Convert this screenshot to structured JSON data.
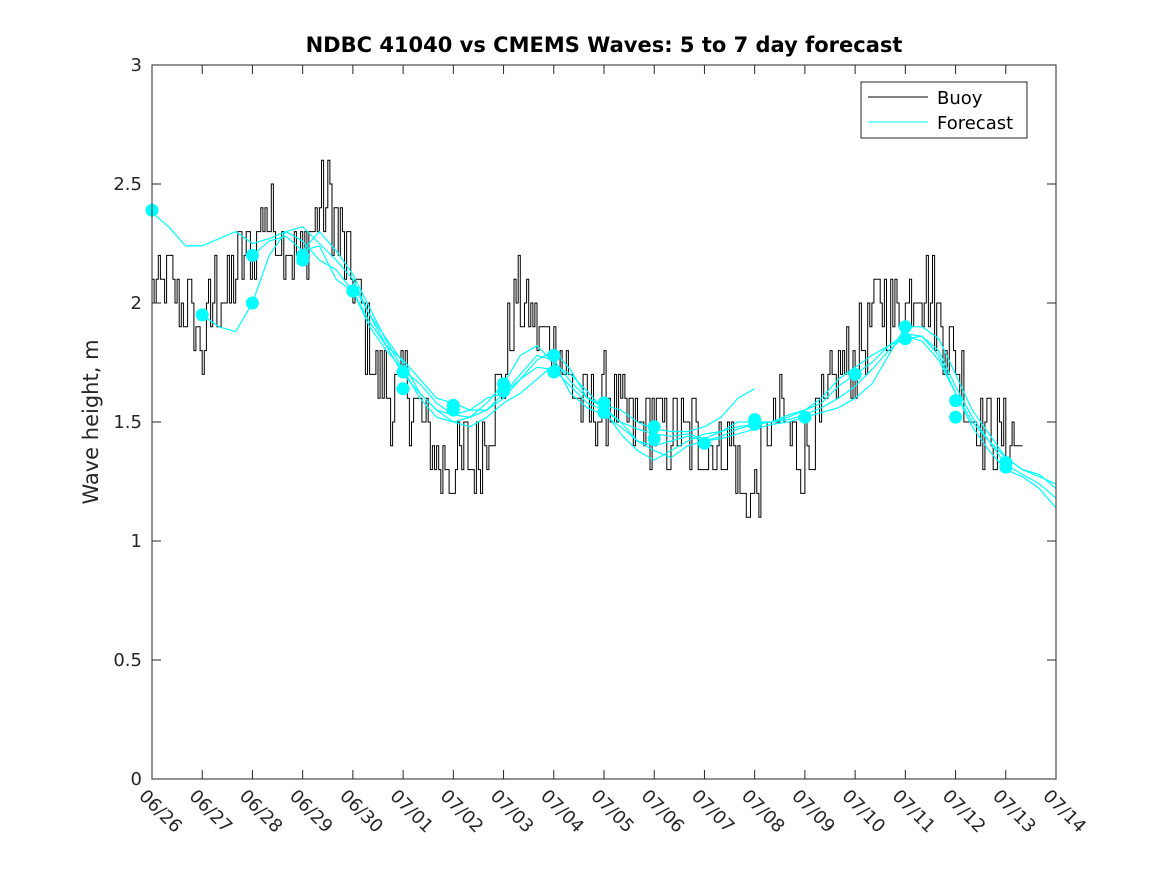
{
  "chart_data": {
    "type": "line",
    "title": "NDBC 41040 vs CMEMS Waves: 5 to 7 day forecast",
    "xlabel": "",
    "ylabel": "Wave height, m",
    "ylim": [
      0,
      3
    ],
    "xlim": [
      "2000-06-26",
      "2000-07-14"
    ],
    "yticks": [
      "0",
      "0.5",
      "1",
      "1.5",
      "2",
      "2.5",
      "3"
    ],
    "xticks": [
      "06/26",
      "06/27",
      "06/28",
      "06/29",
      "06/30",
      "07/01",
      "07/02",
      "07/03",
      "07/04",
      "07/05",
      "07/06",
      "07/07",
      "07/08",
      "07/09",
      "07/10",
      "07/11",
      "07/12",
      "07/13",
      "07/14"
    ],
    "grid": false,
    "legend_position": "top-right",
    "legend": [
      "Buoy",
      "Forecast"
    ],
    "colors": {
      "buoy": "#000000",
      "forecast": "#00ffff"
    },
    "buoy": {
      "name": "Buoy",
      "x": [
        "2000-06-26 00:00",
        "2000-06-26 06:00",
        "2000-06-26 12:00",
        "2000-06-26 18:00",
        "2000-06-27 00:00",
        "2000-06-27 06:00",
        "2000-06-27 12:00",
        "2000-06-27 18:00",
        "2000-06-28 00:00",
        "2000-06-28 06:00",
        "2000-06-28 12:00",
        "2000-06-28 18:00",
        "2000-06-29 00:00",
        "2000-06-29 06:00",
        "2000-06-29 12:00",
        "2000-06-29 18:00",
        "2000-06-30 00:00",
        "2000-06-30 06:00",
        "2000-06-30 12:00",
        "2000-06-30 18:00",
        "2000-07-01 00:00",
        "2000-07-01 06:00",
        "2000-07-01 12:00",
        "2000-07-01 18:00",
        "2000-07-02 00:00",
        "2000-07-02 06:00",
        "2000-07-02 12:00",
        "2000-07-02 18:00",
        "2000-07-03 00:00",
        "2000-07-03 06:00",
        "2000-07-03 12:00",
        "2000-07-03 18:00",
        "2000-07-04 00:00",
        "2000-07-04 06:00",
        "2000-07-04 12:00",
        "2000-07-04 18:00",
        "2000-07-05 00:00",
        "2000-07-05 06:00",
        "2000-07-05 12:00",
        "2000-07-05 18:00",
        "2000-07-06 00:00",
        "2000-07-06 06:00",
        "2000-07-06 12:00",
        "2000-07-06 18:00",
        "2000-07-07 00:00",
        "2000-07-07 06:00",
        "2000-07-07 12:00",
        "2000-07-07 18:00",
        "2000-07-08 00:00",
        "2000-07-08 06:00",
        "2000-07-08 12:00",
        "2000-07-08 18:00",
        "2000-07-09 00:00",
        "2000-07-09 06:00",
        "2000-07-09 12:00",
        "2000-07-09 18:00",
        "2000-07-10 00:00",
        "2000-07-10 06:00",
        "2000-07-10 12:00",
        "2000-07-10 18:00",
        "2000-07-11 00:00",
        "2000-07-11 06:00",
        "2000-07-11 12:00",
        "2000-07-11 18:00",
        "2000-07-12 00:00",
        "2000-07-12 06:00",
        "2000-07-12 12:00",
        "2000-07-12 18:00",
        "2000-07-13 00:00",
        "2000-07-13 06:00",
        "2000-07-13 08:00"
      ],
      "y": [
        2.0,
        2.1,
        2.05,
        1.95,
        1.8,
        2.05,
        2.0,
        2.2,
        2.2,
        2.4,
        2.3,
        2.25,
        2.2,
        2.35,
        2.45,
        2.25,
        2.1,
        1.85,
        1.7,
        1.6,
        1.65,
        1.55,
        1.4,
        1.3,
        1.3,
        1.35,
        1.35,
        1.55,
        1.7,
        2.05,
        1.95,
        1.85,
        1.85,
        1.7,
        1.6,
        1.55,
        1.6,
        1.55,
        1.5,
        1.5,
        1.5,
        1.45,
        1.45,
        1.45,
        1.4,
        1.4,
        1.45,
        1.2,
        1.2,
        1.45,
        1.55,
        1.4,
        1.35,
        1.5,
        1.6,
        1.75,
        1.75,
        1.9,
        2.0,
        1.95,
        2.0,
        2.1,
        2.05,
        1.9,
        1.75,
        1.6,
        1.5,
        1.45,
        1.4,
        1.4,
        1.35
      ]
    },
    "forecast": {
      "name": "Forecast",
      "series": [
        {
          "x": [
            "2000-06-26 00:00",
            "2000-06-26 08:00",
            "2000-06-26 16:00",
            "2000-06-27 00:00",
            "2000-06-27 08:00",
            "2000-06-27 16:00",
            "2000-06-28 00:00",
            "2000-06-28 08:00",
            "2000-06-28 16:00",
            "2000-06-29 00:00",
            "2000-06-29 08:00",
            "2000-06-29 16:00",
            "2000-06-30 00:00",
            "2000-06-30 08:00",
            "2000-06-30 16:00",
            "2000-07-01 00:00",
            "2000-07-01 08:00",
            "2000-07-01 16:00",
            "2000-07-02 00:00",
            "2000-07-02 08:00",
            "2000-07-02 16:00",
            "2000-07-03 00:00",
            "2000-07-03 08:00",
            "2000-07-03 16:00",
            "2000-07-04 00:00",
            "2000-07-04 08:00",
            "2000-07-04 16:00",
            "2000-07-05 00:00",
            "2000-07-05 08:00",
            "2000-07-05 16:00",
            "2000-07-06 00:00",
            "2000-07-06 08:00",
            "2000-07-06 16:00",
            "2000-07-07 00:00",
            "2000-07-07 08:00",
            "2000-07-07 16:00",
            "2000-07-08 00:00"
          ],
          "y": [
            2.38,
            2.32,
            2.24,
            2.24,
            2.27,
            2.3,
            2.25,
            2.27,
            2.3,
            2.26,
            2.18,
            2.14,
            2.05,
            1.9,
            1.8,
            1.72,
            1.66,
            1.58,
            1.53,
            1.52,
            1.55,
            1.62,
            1.7,
            1.78,
            1.76,
            1.67,
            1.6,
            1.57,
            1.55,
            1.5,
            1.47,
            1.46,
            1.46,
            1.48,
            1.52,
            1.6,
            1.64
          ]
        },
        {
          "x": [
            "2000-06-27 00:00",
            "2000-06-27 08:00",
            "2000-06-27 16:00",
            "2000-06-28 00:00",
            "2000-06-28 08:00",
            "2000-06-28 16:00",
            "2000-06-29 00:00",
            "2000-06-29 08:00",
            "2000-06-29 16:00",
            "2000-06-30 00:00",
            "2000-06-30 08:00",
            "2000-06-30 16:00",
            "2000-07-01 00:00",
            "2000-07-01 08:00",
            "2000-07-01 16:00",
            "2000-07-02 00:00",
            "2000-07-02 08:00",
            "2000-07-02 16:00",
            "2000-07-03 00:00",
            "2000-07-03 08:00",
            "2000-07-03 16:00",
            "2000-07-04 00:00",
            "2000-07-04 08:00",
            "2000-07-04 16:00",
            "2000-07-05 00:00",
            "2000-07-05 08:00",
            "2000-07-05 16:00",
            "2000-07-06 00:00",
            "2000-07-06 08:00",
            "2000-07-06 16:00",
            "2000-07-07 00:00",
            "2000-07-07 08:00",
            "2000-07-07 16:00",
            "2000-07-08 00:00",
            "2000-07-08 08:00",
            "2000-07-08 16:00",
            "2000-07-09 00:00",
            "2000-07-09 08:00",
            "2000-07-09 16:00",
            "2000-07-10 00:00",
            "2000-07-10 08:00",
            "2000-07-10 16:00",
            "2000-07-11 00:00",
            "2000-07-11 08:00",
            "2000-07-11 16:00",
            "2000-07-12 00:00",
            "2000-07-12 08:00",
            "2000-07-12 16:00",
            "2000-07-13 00:00",
            "2000-07-13 08:00",
            "2000-07-13 16:00",
            "2000-07-14 00:00"
          ],
          "y": [
            1.95,
            1.9,
            1.88,
            2.0,
            2.2,
            2.3,
            2.32,
            2.25,
            2.18,
            2.1,
            1.95,
            1.82,
            1.7,
            1.62,
            1.55,
            1.53,
            1.55,
            1.6,
            1.62,
            1.68,
            1.73,
            1.72,
            1.65,
            1.58,
            1.55,
            1.5,
            1.47,
            1.45,
            1.44,
            1.45,
            1.43,
            1.46,
            1.5,
            1.5,
            1.5,
            1.53,
            1.55,
            1.58,
            1.65,
            1.7,
            1.75,
            1.82,
            1.87,
            1.86,
            1.78,
            1.62,
            1.5,
            1.42,
            1.35,
            1.3,
            1.27,
            1.24
          ]
        },
        {
          "x": [
            "2000-06-28 00:00",
            "2000-06-28 08:00",
            "2000-06-28 16:00",
            "2000-06-29 00:00",
            "2000-06-29 08:00",
            "2000-06-29 16:00",
            "2000-06-30 00:00",
            "2000-06-30 08:00",
            "2000-06-30 16:00",
            "2000-07-01 00:00",
            "2000-07-01 08:00",
            "2000-07-01 16:00",
            "2000-07-02 00:00",
            "2000-07-02 08:00",
            "2000-07-02 16:00",
            "2000-07-03 00:00",
            "2000-07-03 08:00",
            "2000-07-03 16:00",
            "2000-07-04 00:00",
            "2000-07-04 08:00",
            "2000-07-04 16:00",
            "2000-07-05 00:00",
            "2000-07-05 08:00",
            "2000-07-05 16:00",
            "2000-07-06 00:00",
            "2000-07-06 08:00",
            "2000-07-06 16:00",
            "2000-07-07 00:00",
            "2000-07-07 08:00",
            "2000-07-07 16:00",
            "2000-07-08 00:00",
            "2000-07-08 08:00",
            "2000-07-08 16:00",
            "2000-07-09 00:00",
            "2000-07-09 08:00",
            "2000-07-09 16:00",
            "2000-07-10 00:00",
            "2000-07-10 08:00",
            "2000-07-10 16:00",
            "2000-07-11 00:00",
            "2000-07-11 08:00",
            "2000-07-11 16:00",
            "2000-07-12 00:00",
            "2000-07-12 08:00",
            "2000-07-12 16:00",
            "2000-07-13 00:00",
            "2000-07-13 08:00",
            "2000-07-13 16:00",
            "2000-07-14 00:00"
          ],
          "y": [
            2.2,
            2.26,
            2.28,
            2.22,
            2.3,
            2.22,
            2.12,
            1.98,
            1.84,
            1.72,
            1.6,
            1.52,
            1.5,
            1.52,
            1.58,
            1.66,
            1.78,
            1.82,
            1.75,
            1.62,
            1.56,
            1.53,
            1.48,
            1.42,
            1.4,
            1.42,
            1.44,
            1.42,
            1.44,
            1.47,
            1.49,
            1.5,
            1.52,
            1.55,
            1.6,
            1.68,
            1.73,
            1.78,
            1.82,
            1.85,
            1.86,
            1.8,
            1.65,
            1.52,
            1.42,
            1.32,
            1.28,
            1.24,
            1.18
          ]
        },
        {
          "x": [
            "2000-06-29 00:00",
            "2000-06-29 08:00",
            "2000-06-29 16:00",
            "2000-06-30 00:00",
            "2000-06-30 08:00",
            "2000-06-30 16:00",
            "2000-07-01 00:00",
            "2000-07-01 08:00",
            "2000-07-01 16:00",
            "2000-07-02 00:00",
            "2000-07-02 08:00",
            "2000-07-02 16:00",
            "2000-07-03 00:00",
            "2000-07-03 08:00",
            "2000-07-03 16:00",
            "2000-07-04 00:00",
            "2000-07-04 08:00",
            "2000-07-04 16:00",
            "2000-07-05 00:00",
            "2000-07-05 08:00",
            "2000-07-05 16:00",
            "2000-07-06 00:00",
            "2000-07-06 08:00",
            "2000-07-06 16:00",
            "2000-07-07 00:00",
            "2000-07-07 08:00",
            "2000-07-07 16:00",
            "2000-07-08 00:00",
            "2000-07-08 08:00",
            "2000-07-08 16:00",
            "2000-07-09 00:00",
            "2000-07-09 08:00",
            "2000-07-09 16:00",
            "2000-07-10 00:00",
            "2000-07-10 08:00",
            "2000-07-10 16:00",
            "2000-07-11 00:00",
            "2000-07-11 08:00",
            "2000-07-11 16:00",
            "2000-07-12 00:00",
            "2000-07-12 08:00",
            "2000-07-12 16:00",
            "2000-07-13 00:00",
            "2000-07-13 08:00",
            "2000-07-13 16:00",
            "2000-07-14 00:00"
          ],
          "y": [
            2.22,
            2.24,
            2.1,
            2.05,
            1.92,
            1.82,
            1.76,
            1.68,
            1.6,
            1.58,
            1.55,
            1.55,
            1.6,
            1.68,
            1.76,
            1.8,
            1.72,
            1.6,
            1.56,
            1.5,
            1.42,
            1.38,
            1.35,
            1.4,
            1.42,
            1.43,
            1.45,
            1.47,
            1.49,
            1.5,
            1.52,
            1.54,
            1.56,
            1.6,
            1.66,
            1.78,
            1.9,
            1.9,
            1.85,
            1.7,
            1.55,
            1.45,
            1.35,
            1.3,
            1.28,
            1.22
          ]
        },
        {
          "x": [
            "2000-06-30 00:00",
            "2000-06-30 08:00",
            "2000-06-30 16:00",
            "2000-07-01 00:00",
            "2000-07-01 08:00",
            "2000-07-01 16:00",
            "2000-07-02 00:00",
            "2000-07-02 08:00",
            "2000-07-02 16:00",
            "2000-07-03 00:00",
            "2000-07-03 08:00",
            "2000-07-03 16:00",
            "2000-07-04 00:00",
            "2000-07-04 08:00",
            "2000-07-04 16:00",
            "2000-07-05 00:00",
            "2000-07-05 08:00",
            "2000-07-05 16:00",
            "2000-07-06 00:00",
            "2000-07-06 08:00",
            "2000-07-06 16:00",
            "2000-07-07 00:00",
            "2000-07-07 08:00",
            "2000-07-07 16:00",
            "2000-07-08 00:00",
            "2000-07-08 08:00",
            "2000-07-08 16:00",
            "2000-07-09 00:00",
            "2000-07-09 08:00",
            "2000-07-09 16:00",
            "2000-07-10 00:00",
            "2000-07-10 08:00",
            "2000-07-10 16:00",
            "2000-07-11 00:00",
            "2000-07-11 08:00",
            "2000-07-11 16:00",
            "2000-07-12 00:00",
            "2000-07-12 08:00",
            "2000-07-12 16:00",
            "2000-07-13 00:00",
            "2000-07-13 08:00",
            "2000-07-13 16:00",
            "2000-07-14 00:00"
          ],
          "y": [
            2.08,
            1.95,
            1.85,
            1.75,
            1.62,
            1.55,
            1.5,
            1.48,
            1.52,
            1.58,
            1.62,
            1.68,
            1.74,
            1.7,
            1.63,
            1.55,
            1.45,
            1.38,
            1.34,
            1.38,
            1.42,
            1.45,
            1.46,
            1.48,
            1.49,
            1.5,
            1.51,
            1.53,
            1.56,
            1.6,
            1.65,
            1.72,
            1.8,
            1.86,
            1.84,
            1.76,
            1.62,
            1.48,
            1.38,
            1.3,
            1.27,
            1.22,
            1.14
          ]
        }
      ],
      "markers": {
        "x": [
          "2000-06-26 00:00",
          "2000-06-27 00:00",
          "2000-06-28 00:00",
          "2000-06-28 00:00",
          "2000-06-29 00:00",
          "2000-06-29 00:00",
          "2000-06-30 00:00",
          "2000-07-01 00:00",
          "2000-07-01 00:00",
          "2000-07-02 00:00",
          "2000-07-02 00:00",
          "2000-07-03 00:00",
          "2000-07-03 00:00",
          "2000-07-04 00:00",
          "2000-07-04 00:00",
          "2000-07-05 00:00",
          "2000-07-05 00:00",
          "2000-07-06 00:00",
          "2000-07-06 00:00",
          "2000-07-07 00:00",
          "2000-07-08 00:00",
          "2000-07-08 00:00",
          "2000-07-09 00:00",
          "2000-07-10 00:00",
          "2000-07-11 00:00",
          "2000-07-11 00:00",
          "2000-07-12 00:00",
          "2000-07-12 00:00",
          "2000-07-13 00:00",
          "2000-07-13 00:00"
        ],
        "y": [
          2.39,
          1.95,
          2.2,
          2.0,
          2.2,
          2.18,
          2.05,
          1.71,
          1.64,
          1.57,
          1.55,
          1.66,
          1.63,
          1.78,
          1.71,
          1.58,
          1.54,
          1.48,
          1.43,
          1.41,
          1.51,
          1.49,
          1.52,
          1.7,
          1.9,
          1.85,
          1.59,
          1.52,
          1.33,
          1.31
        ]
      }
    }
  }
}
